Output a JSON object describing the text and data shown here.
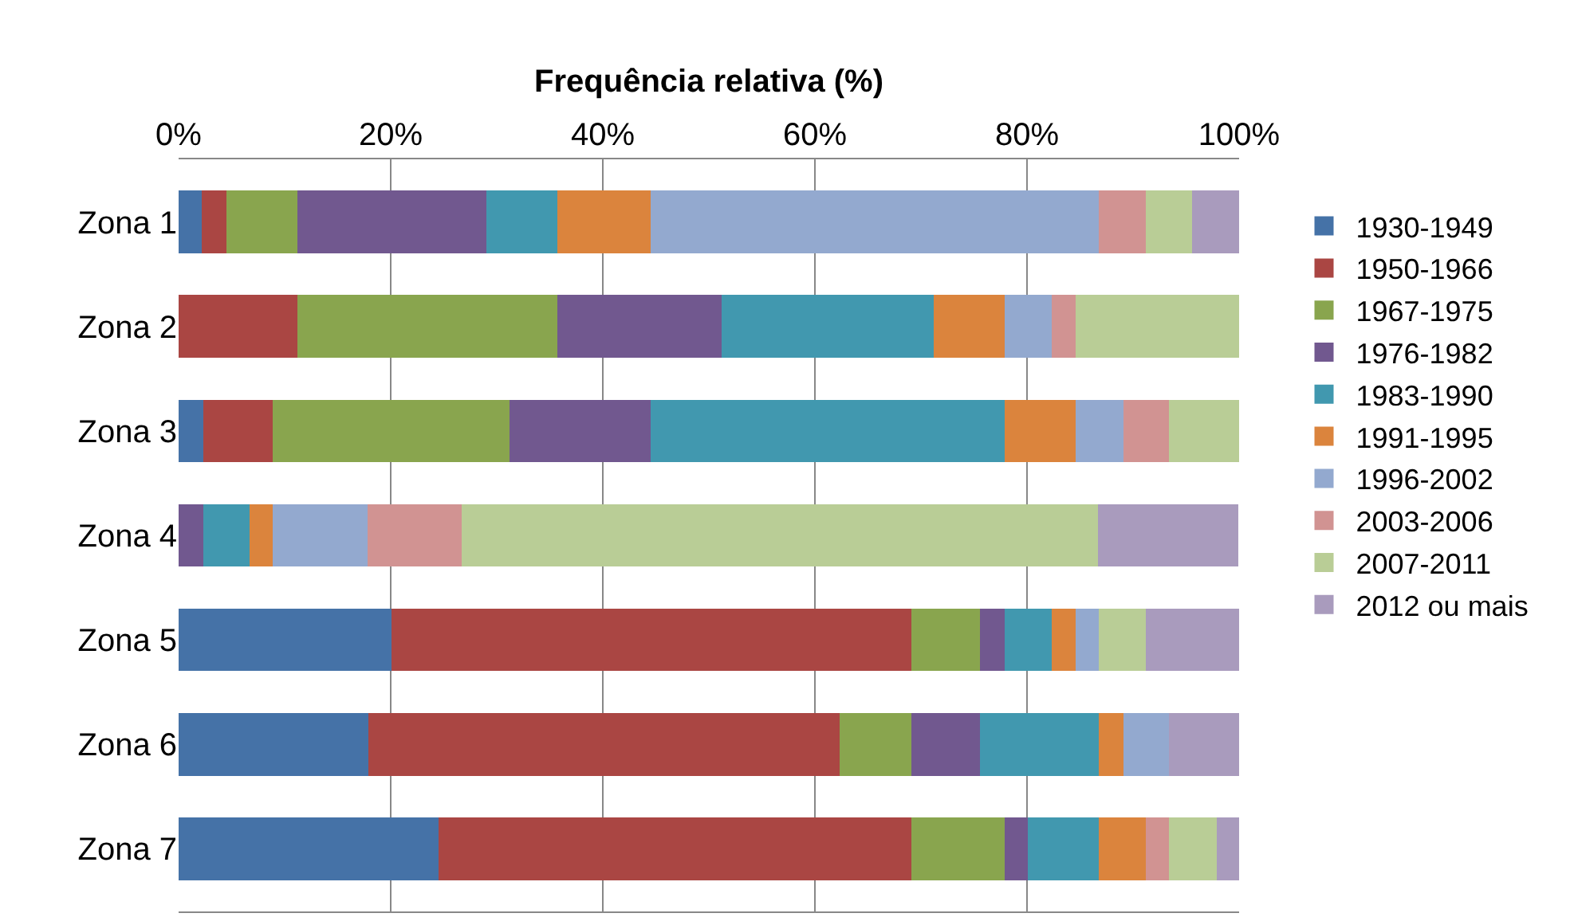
{
  "chart_data": {
    "type": "bar",
    "orientation": "horizontal",
    "stacked": true,
    "xlabel": "Frequência relativa (%)",
    "categories": [
      "Zona 1",
      "Zona 2",
      "Zona 3",
      "Zona 4",
      "Zona 5",
      "Zona 6",
      "Zona 7"
    ],
    "series": [
      {
        "name": "1930-1949",
        "color": "#4572a7",
        "values": [
          2.2,
          null,
          2.3,
          null,
          20.1,
          17.9,
          24.5
        ]
      },
      {
        "name": "1950-1966",
        "color": "#aa4643",
        "values": [
          2.3,
          11.2,
          6.6,
          null,
          49.0,
          44.4,
          44.6
        ]
      },
      {
        "name": "1967-1975",
        "color": "#89a54e",
        "values": [
          6.7,
          24.5,
          22.3,
          null,
          6.5,
          6.8,
          8.8
        ]
      },
      {
        "name": "1976-1982",
        "color": "#71588f",
        "values": [
          17.8,
          15.5,
          13.3,
          2.3,
          2.3,
          6.5,
          2.2
        ]
      },
      {
        "name": "1983-1990",
        "color": "#4198af",
        "values": [
          6.7,
          20.0,
          33.4,
          4.4,
          4.4,
          11.2,
          6.7
        ]
      },
      {
        "name": "1991-1995",
        "color": "#db843d",
        "values": [
          8.8,
          6.7,
          6.7,
          2.2,
          2.3,
          2.3,
          4.4
        ]
      },
      {
        "name": "1996-2002",
        "color": "#93a9cf",
        "values": [
          42.3,
          4.4,
          4.5,
          8.9,
          2.2,
          4.3,
          null
        ]
      },
      {
        "name": "2003-2006",
        "color": "#d19392",
        "values": [
          4.4,
          2.3,
          4.3,
          8.9,
          null,
          null,
          2.2
        ]
      },
      {
        "name": "2007-2011",
        "color": "#b9cd96",
        "values": [
          4.4,
          15.4,
          6.6,
          60.0,
          4.4,
          null,
          4.5
        ]
      },
      {
        "name": "2012 ou mais",
        "color": "#a99bbd",
        "values": [
          4.4,
          null,
          null,
          13.2,
          8.8,
          6.6,
          2.1
        ]
      }
    ],
    "xlim": [
      0,
      100
    ],
    "xticks": [
      {
        "value": 0,
        "label": "0%"
      },
      {
        "value": 20,
        "label": "20%"
      },
      {
        "value": 40,
        "label": "40%"
      },
      {
        "value": 60,
        "label": "60%"
      },
      {
        "value": 80,
        "label": "80%"
      },
      {
        "value": 100,
        "label": "100%"
      }
    ],
    "grid": "x",
    "legend": "right"
  }
}
